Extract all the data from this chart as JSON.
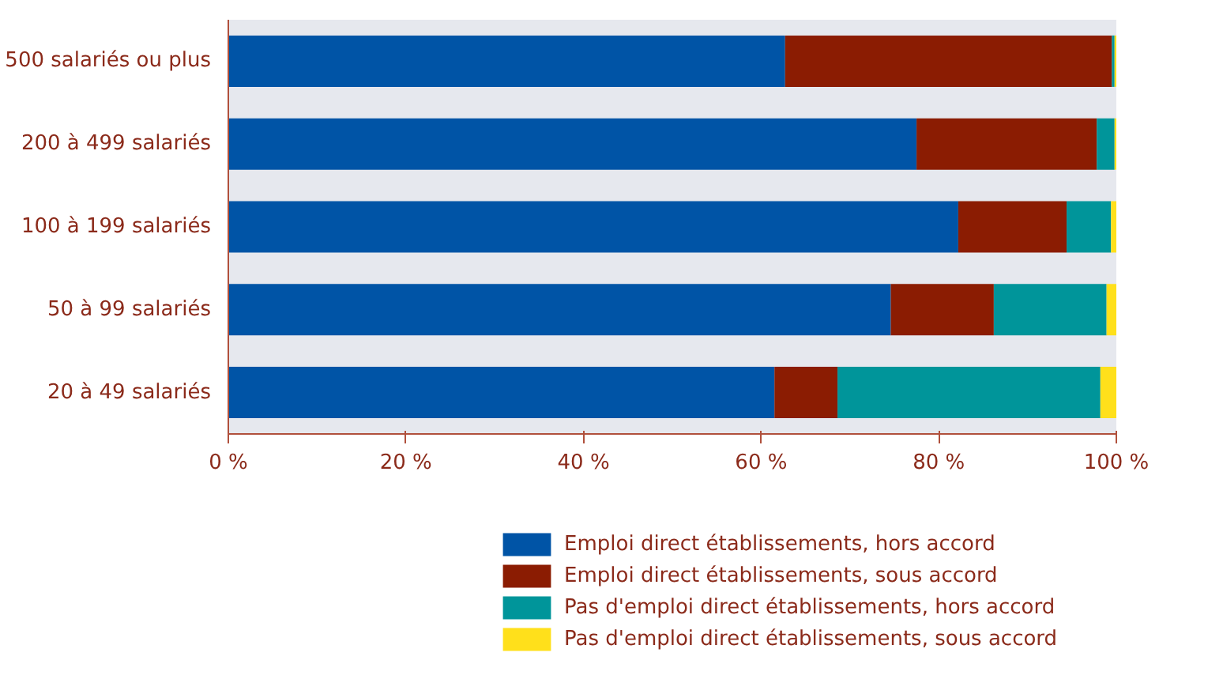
{
  "chart_data": {
    "type": "bar",
    "orientation": "horizontal",
    "stacked": true,
    "categories": [
      "500 salariés ou plus",
      "200 à 499 salariés",
      "100 à 199 salariés",
      "50 à 99 salariés",
      "20 à 49 salariés"
    ],
    "series": [
      {
        "name": "Emploi direct établissements, hors accord",
        "color": "#0054a6",
        "values": [
          62.7,
          77.5,
          82.2,
          74.6,
          61.5
        ]
      },
      {
        "name": "Emploi direct établissements, sous accord",
        "color": "#8b1c02",
        "values": [
          36.8,
          20.3,
          12.2,
          11.6,
          7.1
        ]
      },
      {
        "name": "Pas d'emploi direct établissements, hors accord",
        "color": "#00959a",
        "values": [
          0.3,
          2.0,
          5.0,
          12.7,
          29.6
        ]
      },
      {
        "name": "Pas d'emploi direct établissements, sous accord",
        "color": "#ffe01b",
        "values": [
          0.2,
          0.2,
          0.6,
          1.1,
          1.8
        ]
      }
    ],
    "xlim": [
      0,
      100
    ],
    "xticks": [
      {
        "value": 0,
        "label": "0 %"
      },
      {
        "value": 20,
        "label": "20 %"
      },
      {
        "value": 40,
        "label": "40 %"
      },
      {
        "value": 60,
        "label": "60 %"
      },
      {
        "value": 80,
        "label": "80 %"
      },
      {
        "value": 100,
        "label": "100 %"
      }
    ],
    "grid": false,
    "legend": "bottom"
  }
}
